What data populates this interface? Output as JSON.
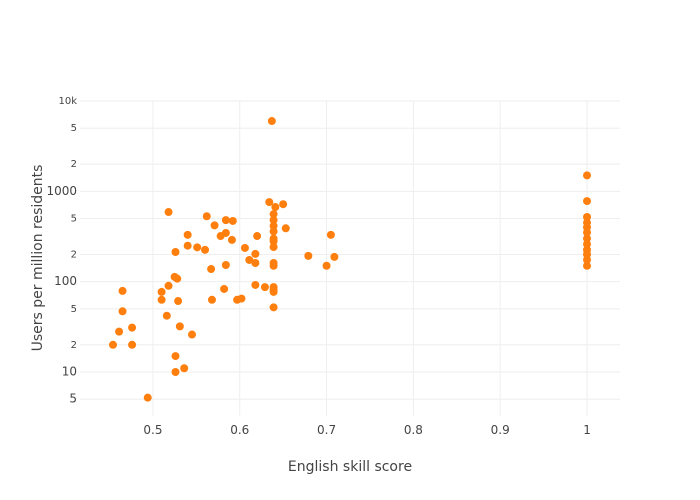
{
  "chart_data": {
    "type": "scatter",
    "x_label": "English skill score",
    "y_label": "Users per million residents",
    "color": "#ff7f0e",
    "log_y": true,
    "grid": true,
    "xlim": [
      0.416,
      1.038
    ],
    "ylim": [
      3.3,
      10000
    ],
    "xticks": [
      0.5,
      0.6,
      0.7,
      0.8,
      0.9,
      1
    ],
    "yticks": [
      5,
      10,
      {
        "value": 20,
        "label": "2"
      },
      {
        "value": 50,
        "label": "5"
      },
      100,
      {
        "value": 200,
        "label": "2"
      },
      {
        "value": 500,
        "label": "5"
      },
      1000,
      {
        "value": 2000,
        "label": "2"
      },
      {
        "value": 5000,
        "label": "5"
      },
      {
        "value": 10000,
        "label": "10k"
      }
    ],
    "x": [
      0.637,
      1,
      1,
      1,
      1,
      1,
      1,
      1,
      1,
      1,
      1,
      1,
      1,
      0.518,
      0.562,
      0.584,
      0.592,
      0.571,
      0.634,
      0.641,
      0.65,
      0.639,
      0.639,
      0.639,
      0.639,
      0.653,
      0.584,
      0.578,
      0.54,
      0.591,
      0.62,
      0.639,
      0.639,
      0.639,
      0.705,
      0.606,
      0.551,
      0.54,
      0.56,
      0.526,
      0.618,
      0.679,
      0.709,
      0.611,
      0.618,
      0.639,
      0.639,
      0.584,
      0.567,
      0.7,
      0.525,
      0.528,
      0.518,
      0.618,
      0.629,
      0.639,
      0.582,
      0.639,
      0.639,
      0.465,
      0.51,
      0.51,
      0.568,
      0.529,
      0.597,
      0.602,
      0.639,
      0.465,
      0.516,
      0.531,
      0.476,
      0.461,
      0.545,
      0.454,
      0.476,
      0.526,
      0.536,
      0.526,
      0.494
    ],
    "values": [
      6000,
      1500,
      780,
      520,
      450,
      400,
      350,
      300,
      260,
      225,
      200,
      175,
      150,
      590,
      530,
      480,
      470,
      420,
      760,
      670,
      720,
      560,
      480,
      414,
      360,
      390,
      346,
      320,
      330,
      290,
      320,
      300,
      280,
      242,
      330,
      236,
      240,
      250,
      225,
      213,
      203,
      193,
      188,
      174,
      161,
      161,
      150,
      153,
      138,
      150,
      113,
      108,
      90,
      92,
      87,
      87,
      83,
      81,
      77,
      79,
      77,
      63,
      63,
      61,
      63,
      65,
      52,
      47,
      42,
      32,
      31,
      28,
      26,
      20,
      20,
      15,
      11,
      10,
      5.2
    ]
  }
}
